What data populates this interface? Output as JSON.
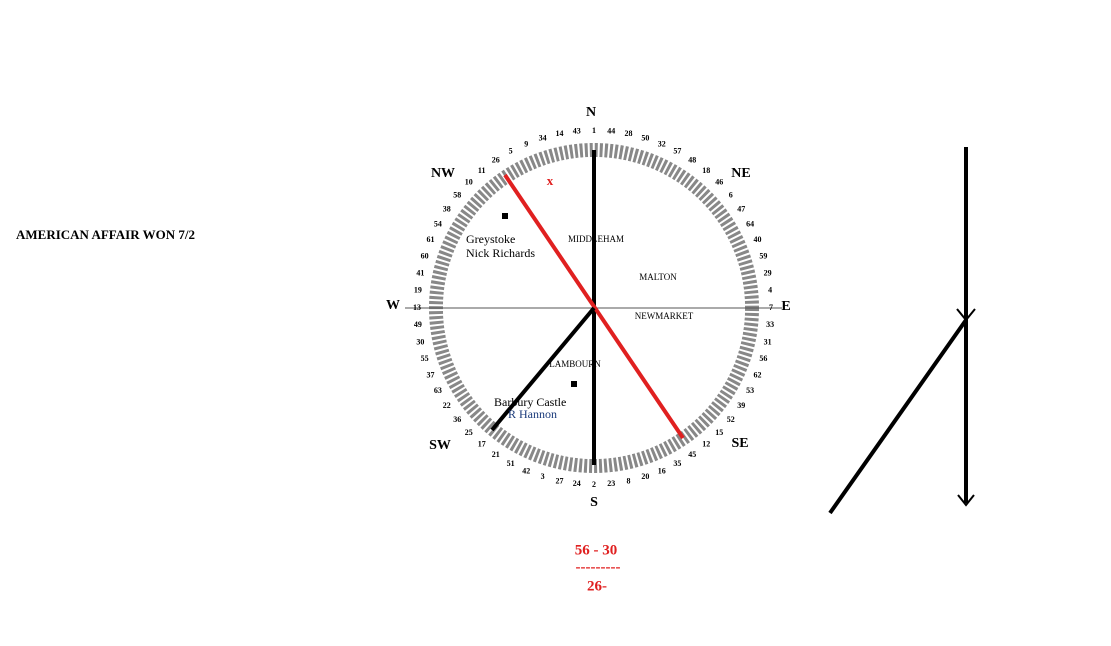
{
  "headline": "AMERICAN AFFAIR WON 7/2",
  "compass": {
    "N": "N",
    "NE": "NE",
    "E": "E",
    "SE": "SE",
    "S": "S",
    "SW": "SW",
    "W": "W",
    "NW": "NW"
  },
  "places": {
    "middleham": "MIDDLEHAM",
    "malton": "MALTON",
    "newmarket": "NEWMARKET",
    "lambourn": "LAMBOURN"
  },
  "yards": [
    {
      "name": "Greystoke",
      "trainer": "Nick Richards"
    },
    {
      "name": "Barbury Castle",
      "trainer": "R Hannon"
    }
  ],
  "marker": "x",
  "sum": {
    "line1": "56 - 30",
    "rule": "---------",
    "result": "26-"
  },
  "ring_numbers": [
    "1",
    "44",
    "28",
    "50",
    "32",
    "57",
    "48",
    "18",
    "46",
    "6",
    "47",
    "64",
    "40",
    "59",
    "29",
    "4",
    "7",
    "33",
    "31",
    "56",
    "62",
    "53",
    "39",
    "52",
    "15",
    "12",
    "45",
    "35",
    "16",
    "20",
    "8",
    "23",
    "2",
    "24",
    "27",
    "3",
    "42",
    "51",
    "21",
    "17",
    "25",
    "36",
    "22",
    "63",
    "37",
    "55",
    "30",
    "49",
    "13",
    "19",
    "41",
    "60",
    "61",
    "54",
    "38",
    "58",
    "10",
    "11",
    "26",
    "5",
    "9",
    "34",
    "14",
    "43"
  ]
}
